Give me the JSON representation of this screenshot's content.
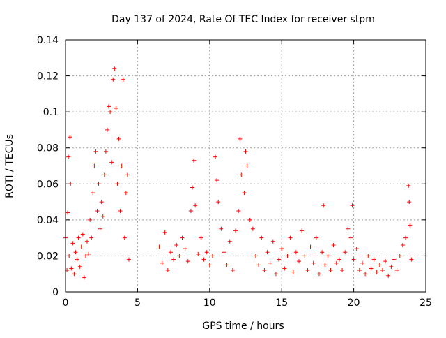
{
  "chart_data": {
    "type": "scatter",
    "title": "Day 137 of 2024, Rate Of TEC Index for receiver stpm",
    "xlabel": "GPS time / hours",
    "ylabel": "ROTI / TECUs",
    "xlim": [
      0,
      25
    ],
    "ylim": [
      0,
      0.14
    ],
    "x_ticks": [
      0,
      5,
      10,
      15,
      20,
      25
    ],
    "x_tick_labels": [
      "0",
      "5",
      "10",
      "15",
      "20",
      "25"
    ],
    "y_ticks": [
      0,
      0.02,
      0.04,
      0.06,
      0.08,
      0.1,
      0.12,
      0.14
    ],
    "y_tick_labels": [
      "0",
      "0.02",
      "0.04",
      "0.06",
      "0.08",
      "0.1",
      "0.12",
      "0.14"
    ],
    "grid": true,
    "marker": "+",
    "marker_color": "#ff0000",
    "series": [
      {
        "name": "ROTI",
        "points": [
          [
            0.0,
            0.03
          ],
          [
            0.1,
            0.012
          ],
          [
            0.15,
            0.044
          ],
          [
            0.2,
            0.075
          ],
          [
            0.25,
            0.02
          ],
          [
            0.3,
            0.086
          ],
          [
            0.35,
            0.06
          ],
          [
            0.4,
            0.013
          ],
          [
            0.5,
            0.027
          ],
          [
            0.6,
            0.01
          ],
          [
            0.7,
            0.022
          ],
          [
            0.8,
            0.018
          ],
          [
            0.9,
            0.03
          ],
          [
            1.0,
            0.014
          ],
          [
            1.1,
            0.025
          ],
          [
            1.2,
            0.032
          ],
          [
            1.3,
            0.008
          ],
          [
            1.4,
            0.02
          ],
          [
            1.5,
            0.028
          ],
          [
            1.6,
            0.021
          ],
          [
            1.7,
            0.04
          ],
          [
            1.8,
            0.03
          ],
          [
            1.9,
            0.055
          ],
          [
            2.0,
            0.07
          ],
          [
            2.1,
            0.078
          ],
          [
            2.2,
            0.045
          ],
          [
            2.3,
            0.06
          ],
          [
            2.4,
            0.035
          ],
          [
            2.5,
            0.05
          ],
          [
            2.6,
            0.042
          ],
          [
            2.7,
            0.065
          ],
          [
            2.8,
            0.078
          ],
          [
            2.9,
            0.09
          ],
          [
            3.0,
            0.103
          ],
          [
            3.1,
            0.1
          ],
          [
            3.2,
            0.072
          ],
          [
            3.3,
            0.118
          ],
          [
            3.4,
            0.124
          ],
          [
            3.5,
            0.102
          ],
          [
            3.6,
            0.06
          ],
          [
            3.7,
            0.085
          ],
          [
            3.8,
            0.045
          ],
          [
            3.9,
            0.07
          ],
          [
            4.0,
            0.118
          ],
          [
            4.1,
            0.03
          ],
          [
            4.2,
            0.055
          ],
          [
            4.3,
            0.065
          ],
          [
            4.4,
            0.018
          ],
          [
            6.5,
            0.025
          ],
          [
            6.7,
            0.016
          ],
          [
            6.9,
            0.033
          ],
          [
            7.1,
            0.012
          ],
          [
            7.3,
            0.022
          ],
          [
            7.5,
            0.018
          ],
          [
            7.7,
            0.026
          ],
          [
            7.9,
            0.02
          ],
          [
            8.1,
            0.03
          ],
          [
            8.3,
            0.024
          ],
          [
            8.5,
            0.017
          ],
          [
            8.7,
            0.045
          ],
          [
            8.8,
            0.058
          ],
          [
            8.9,
            0.073
          ],
          [
            9.0,
            0.048
          ],
          [
            9.2,
            0.021
          ],
          [
            9.4,
            0.03
          ],
          [
            9.6,
            0.018
          ],
          [
            9.8,
            0.022
          ],
          [
            10.0,
            0.015
          ],
          [
            10.2,
            0.02
          ],
          [
            10.4,
            0.075
          ],
          [
            10.5,
            0.062
          ],
          [
            10.6,
            0.05
          ],
          [
            10.8,
            0.035
          ],
          [
            11.0,
            0.022
          ],
          [
            11.2,
            0.015
          ],
          [
            11.4,
            0.028
          ],
          [
            11.6,
            0.012
          ],
          [
            11.8,
            0.034
          ],
          [
            12.0,
            0.045
          ],
          [
            12.1,
            0.085
          ],
          [
            12.2,
            0.065
          ],
          [
            12.4,
            0.055
          ],
          [
            12.5,
            0.078
          ],
          [
            12.6,
            0.07
          ],
          [
            12.8,
            0.04
          ],
          [
            13.0,
            0.035
          ],
          [
            13.2,
            0.02
          ],
          [
            13.4,
            0.015
          ],
          [
            13.6,
            0.03
          ],
          [
            13.8,
            0.012
          ],
          [
            14.0,
            0.022
          ],
          [
            14.2,
            0.016
          ],
          [
            14.4,
            0.028
          ],
          [
            14.6,
            0.01
          ],
          [
            14.8,
            0.018
          ],
          [
            15.0,
            0.024
          ],
          [
            15.2,
            0.013
          ],
          [
            15.4,
            0.02
          ],
          [
            15.6,
            0.03
          ],
          [
            15.8,
            0.011
          ],
          [
            16.0,
            0.022
          ],
          [
            16.2,
            0.017
          ],
          [
            16.4,
            0.034
          ],
          [
            16.6,
            0.02
          ],
          [
            16.8,
            0.012
          ],
          [
            17.0,
            0.025
          ],
          [
            17.2,
            0.016
          ],
          [
            17.4,
            0.03
          ],
          [
            17.6,
            0.01
          ],
          [
            17.8,
            0.022
          ],
          [
            17.9,
            0.048
          ],
          [
            18.0,
            0.015
          ],
          [
            18.2,
            0.02
          ],
          [
            18.4,
            0.012
          ],
          [
            18.6,
            0.026
          ],
          [
            18.8,
            0.016
          ],
          [
            19.0,
            0.018
          ],
          [
            19.2,
            0.012
          ],
          [
            19.4,
            0.022
          ],
          [
            19.6,
            0.035
          ],
          [
            19.8,
            0.03
          ],
          [
            19.9,
            0.048
          ],
          [
            20.0,
            0.018
          ],
          [
            20.2,
            0.024
          ],
          [
            20.4,
            0.012
          ],
          [
            20.6,
            0.016
          ],
          [
            20.8,
            0.01
          ],
          [
            21.0,
            0.02
          ],
          [
            21.2,
            0.013
          ],
          [
            21.4,
            0.018
          ],
          [
            21.6,
            0.011
          ],
          [
            21.8,
            0.015
          ],
          [
            22.0,
            0.012
          ],
          [
            22.2,
            0.017
          ],
          [
            22.4,
            0.009
          ],
          [
            22.6,
            0.014
          ],
          [
            22.8,
            0.018
          ],
          [
            23.0,
            0.012
          ],
          [
            23.2,
            0.02
          ],
          [
            23.4,
            0.026
          ],
          [
            23.6,
            0.03
          ],
          [
            23.8,
            0.059
          ],
          [
            23.85,
            0.05
          ],
          [
            23.9,
            0.037
          ],
          [
            24.0,
            0.018
          ]
        ]
      }
    ]
  }
}
